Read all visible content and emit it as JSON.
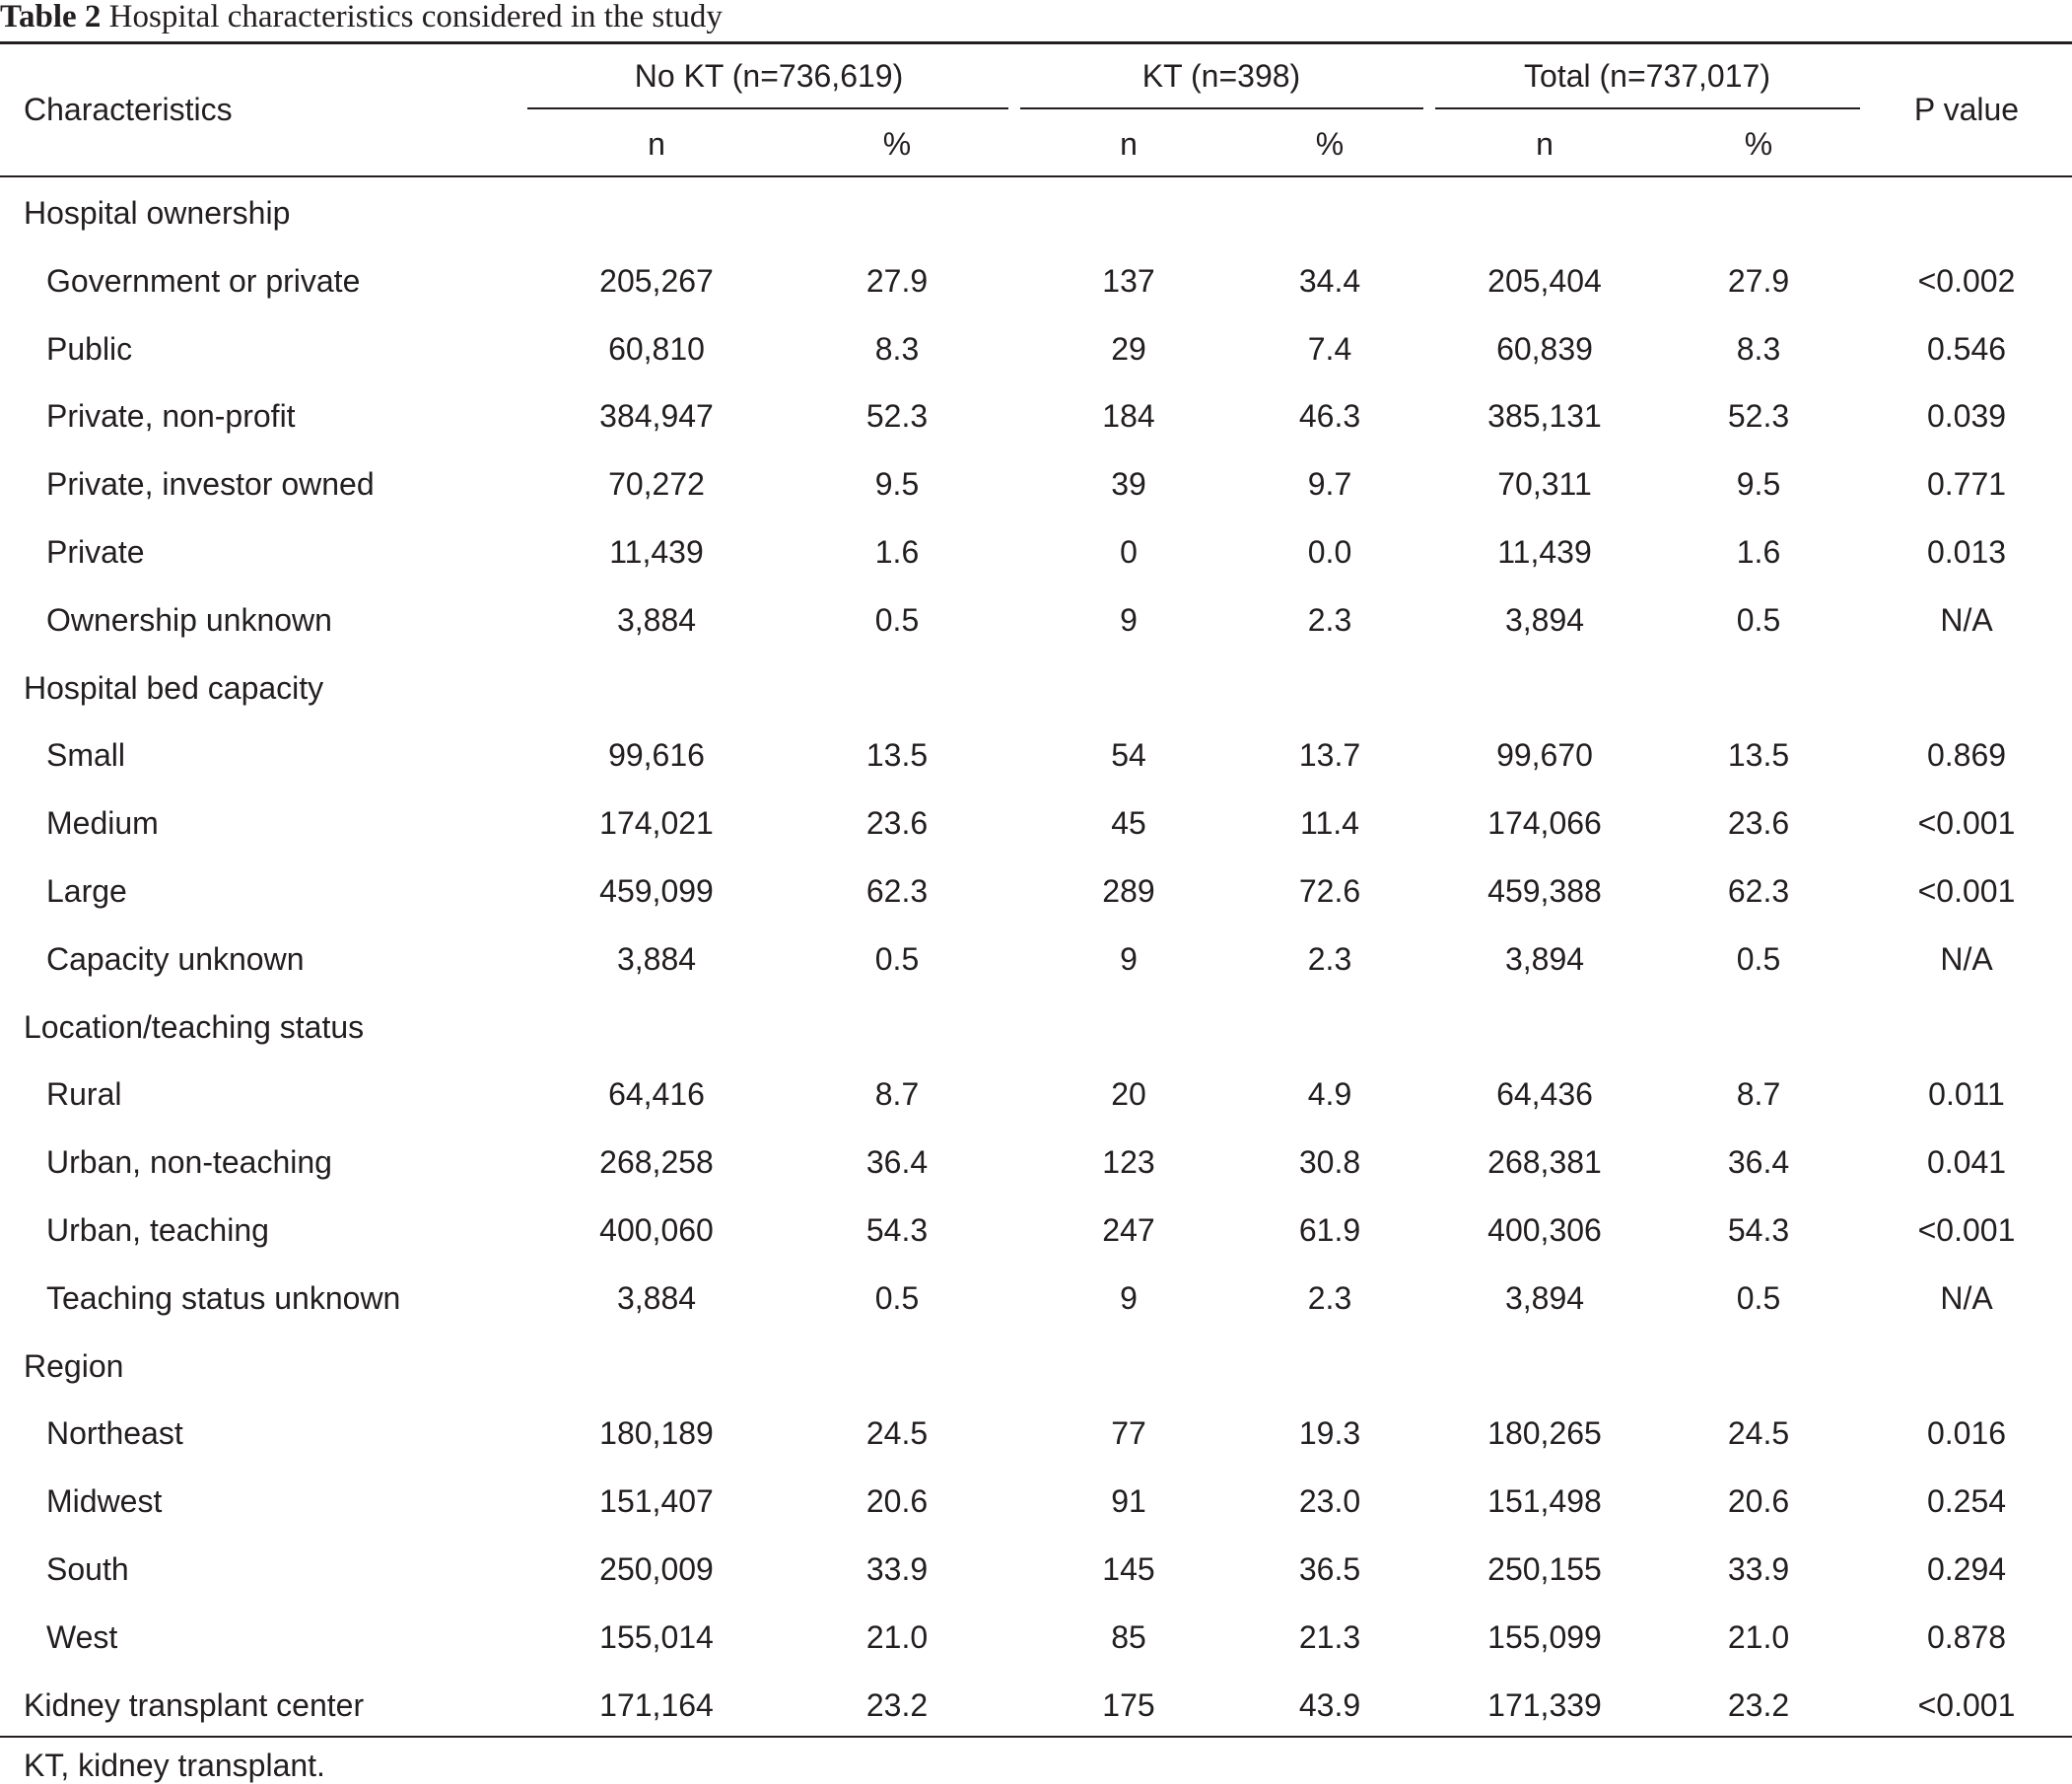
{
  "caption": {
    "label": "Table 2",
    "text": " Hospital characteristics considered in the study"
  },
  "header": {
    "characteristics": "Characteristics",
    "groups": [
      {
        "label": "No KT (n=736,619)",
        "n": "n",
        "pct": "%"
      },
      {
        "label": "KT (n=398)",
        "n": "n",
        "pct": "%"
      },
      {
        "label": "Total (n=737,017)",
        "n": "n",
        "pct": "%"
      }
    ],
    "pvalue": "P value"
  },
  "rows": [
    {
      "kind": "section",
      "label": "Hospital ownership",
      "cells": []
    },
    {
      "kind": "item",
      "label": "Government or private",
      "cells": [
        "205,267",
        "27.9",
        "137",
        "34.4",
        "205,404",
        "27.9",
        "<0.002"
      ]
    },
    {
      "kind": "item",
      "label": "Public",
      "cells": [
        "60,810",
        "8.3",
        "29",
        "7.4",
        "60,839",
        "8.3",
        "0.546"
      ]
    },
    {
      "kind": "item",
      "label": "Private, non-profit",
      "cells": [
        "384,947",
        "52.3",
        "184",
        "46.3",
        "385,131",
        "52.3",
        "0.039"
      ]
    },
    {
      "kind": "item",
      "label": "Private, investor owned",
      "cells": [
        "70,272",
        "9.5",
        "39",
        "9.7",
        "70,311",
        "9.5",
        "0.771"
      ]
    },
    {
      "kind": "item",
      "label": "Private",
      "cells": [
        "11,439",
        "1.6",
        "0",
        "0.0",
        "11,439",
        "1.6",
        "0.013"
      ]
    },
    {
      "kind": "item",
      "label": "Ownership unknown",
      "cells": [
        "3,884",
        "0.5",
        "9",
        "2.3",
        "3,894",
        "0.5",
        "N/A"
      ]
    },
    {
      "kind": "section",
      "label": "Hospital bed capacity",
      "cells": []
    },
    {
      "kind": "item",
      "label": "Small",
      "cells": [
        "99,616",
        "13.5",
        "54",
        "13.7",
        "99,670",
        "13.5",
        "0.869"
      ]
    },
    {
      "kind": "item",
      "label": "Medium",
      "cells": [
        "174,021",
        "23.6",
        "45",
        "11.4",
        "174,066",
        "23.6",
        "<0.001"
      ]
    },
    {
      "kind": "item",
      "label": "Large",
      "cells": [
        "459,099",
        "62.3",
        "289",
        "72.6",
        "459,388",
        "62.3",
        "<0.001"
      ]
    },
    {
      "kind": "item",
      "label": "Capacity unknown",
      "cells": [
        "3,884",
        "0.5",
        "9",
        "2.3",
        "3,894",
        "0.5",
        "N/A"
      ]
    },
    {
      "kind": "section",
      "label": "Location/teaching status",
      "cells": []
    },
    {
      "kind": "item",
      "label": "Rural",
      "cells": [
        "64,416",
        "8.7",
        "20",
        "4.9",
        "64,436",
        "8.7",
        "0.011"
      ]
    },
    {
      "kind": "item",
      "label": "Urban, non-teaching",
      "cells": [
        "268,258",
        "36.4",
        "123",
        "30.8",
        "268,381",
        "36.4",
        "0.041"
      ]
    },
    {
      "kind": "item",
      "label": "Urban, teaching",
      "cells": [
        "400,060",
        "54.3",
        "247",
        "61.9",
        "400,306",
        "54.3",
        "<0.001"
      ]
    },
    {
      "kind": "item",
      "label": "Teaching status unknown",
      "cells": [
        "3,884",
        "0.5",
        "9",
        "2.3",
        "3,894",
        "0.5",
        "N/A"
      ]
    },
    {
      "kind": "section",
      "label": "Region",
      "cells": []
    },
    {
      "kind": "item",
      "label": "Northeast",
      "cells": [
        "180,189",
        "24.5",
        "77",
        "19.3",
        "180,265",
        "24.5",
        "0.016"
      ]
    },
    {
      "kind": "item",
      "label": "Midwest",
      "cells": [
        "151,407",
        "20.6",
        "91",
        "23.0",
        "151,498",
        "20.6",
        "0.254"
      ]
    },
    {
      "kind": "item",
      "label": "South",
      "cells": [
        "250,009",
        "33.9",
        "145",
        "36.5",
        "250,155",
        "33.9",
        "0.294"
      ]
    },
    {
      "kind": "item",
      "label": "West",
      "cells": [
        "155,014",
        "21.0",
        "85",
        "21.3",
        "155,099",
        "21.0",
        "0.878"
      ]
    },
    {
      "kind": "section",
      "label": "Kidney transplant center",
      "cells": [
        "171,164",
        "23.2",
        "175",
        "43.9",
        "171,339",
        "23.2",
        "<0.001"
      ]
    }
  ],
  "footnote": "KT, kidney transplant."
}
